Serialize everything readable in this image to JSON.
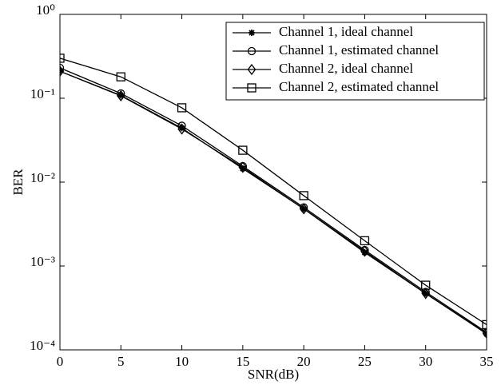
{
  "chart_data": {
    "type": "line",
    "x_label": "SNR(dB)",
    "y_label": "BER",
    "x": [
      0,
      5,
      10,
      15,
      20,
      25,
      30,
      35
    ],
    "xlim": [
      0,
      35
    ],
    "xticks": [
      0,
      5,
      10,
      15,
      20,
      25,
      30,
      35
    ],
    "y_scale": "log",
    "ylim": [
      0.0001,
      1
    ],
    "yticks": [
      {
        "value": 1,
        "label": "10⁰"
      },
      {
        "value": 0.1,
        "label": "10⁻¹"
      },
      {
        "value": 0.01,
        "label": "10⁻²"
      },
      {
        "value": 0.001,
        "label": "10⁻³"
      },
      {
        "value": 0.0001,
        "label": "10⁻⁴"
      }
    ],
    "legend": "top-right",
    "series": [
      {
        "name": "Channel 1, ideal channel",
        "color": "#000000",
        "marker": "star",
        "values": [
          0.21,
          0.108,
          0.044,
          0.0145,
          0.0048,
          0.00145,
          0.00047,
          0.000155
        ]
      },
      {
        "name": "Channel 1, estimated channel",
        "color": "#000000",
        "marker": "circle",
        "values": [
          0.23,
          0.114,
          0.047,
          0.0155,
          0.005,
          0.00155,
          0.00049,
          0.000162
        ]
      },
      {
        "name": "Channel 2, ideal channel",
        "color": "#000000",
        "marker": "diamond",
        "values": [
          0.21,
          0.107,
          0.043,
          0.015,
          0.0048,
          0.0015,
          0.00047,
          0.000158
        ]
      },
      {
        "name": "Channel 2, estimated channel",
        "color": "#000000",
        "marker": "square",
        "values": [
          0.3,
          0.18,
          0.077,
          0.024,
          0.0069,
          0.002,
          0.00059,
          0.0002
        ]
      }
    ]
  }
}
